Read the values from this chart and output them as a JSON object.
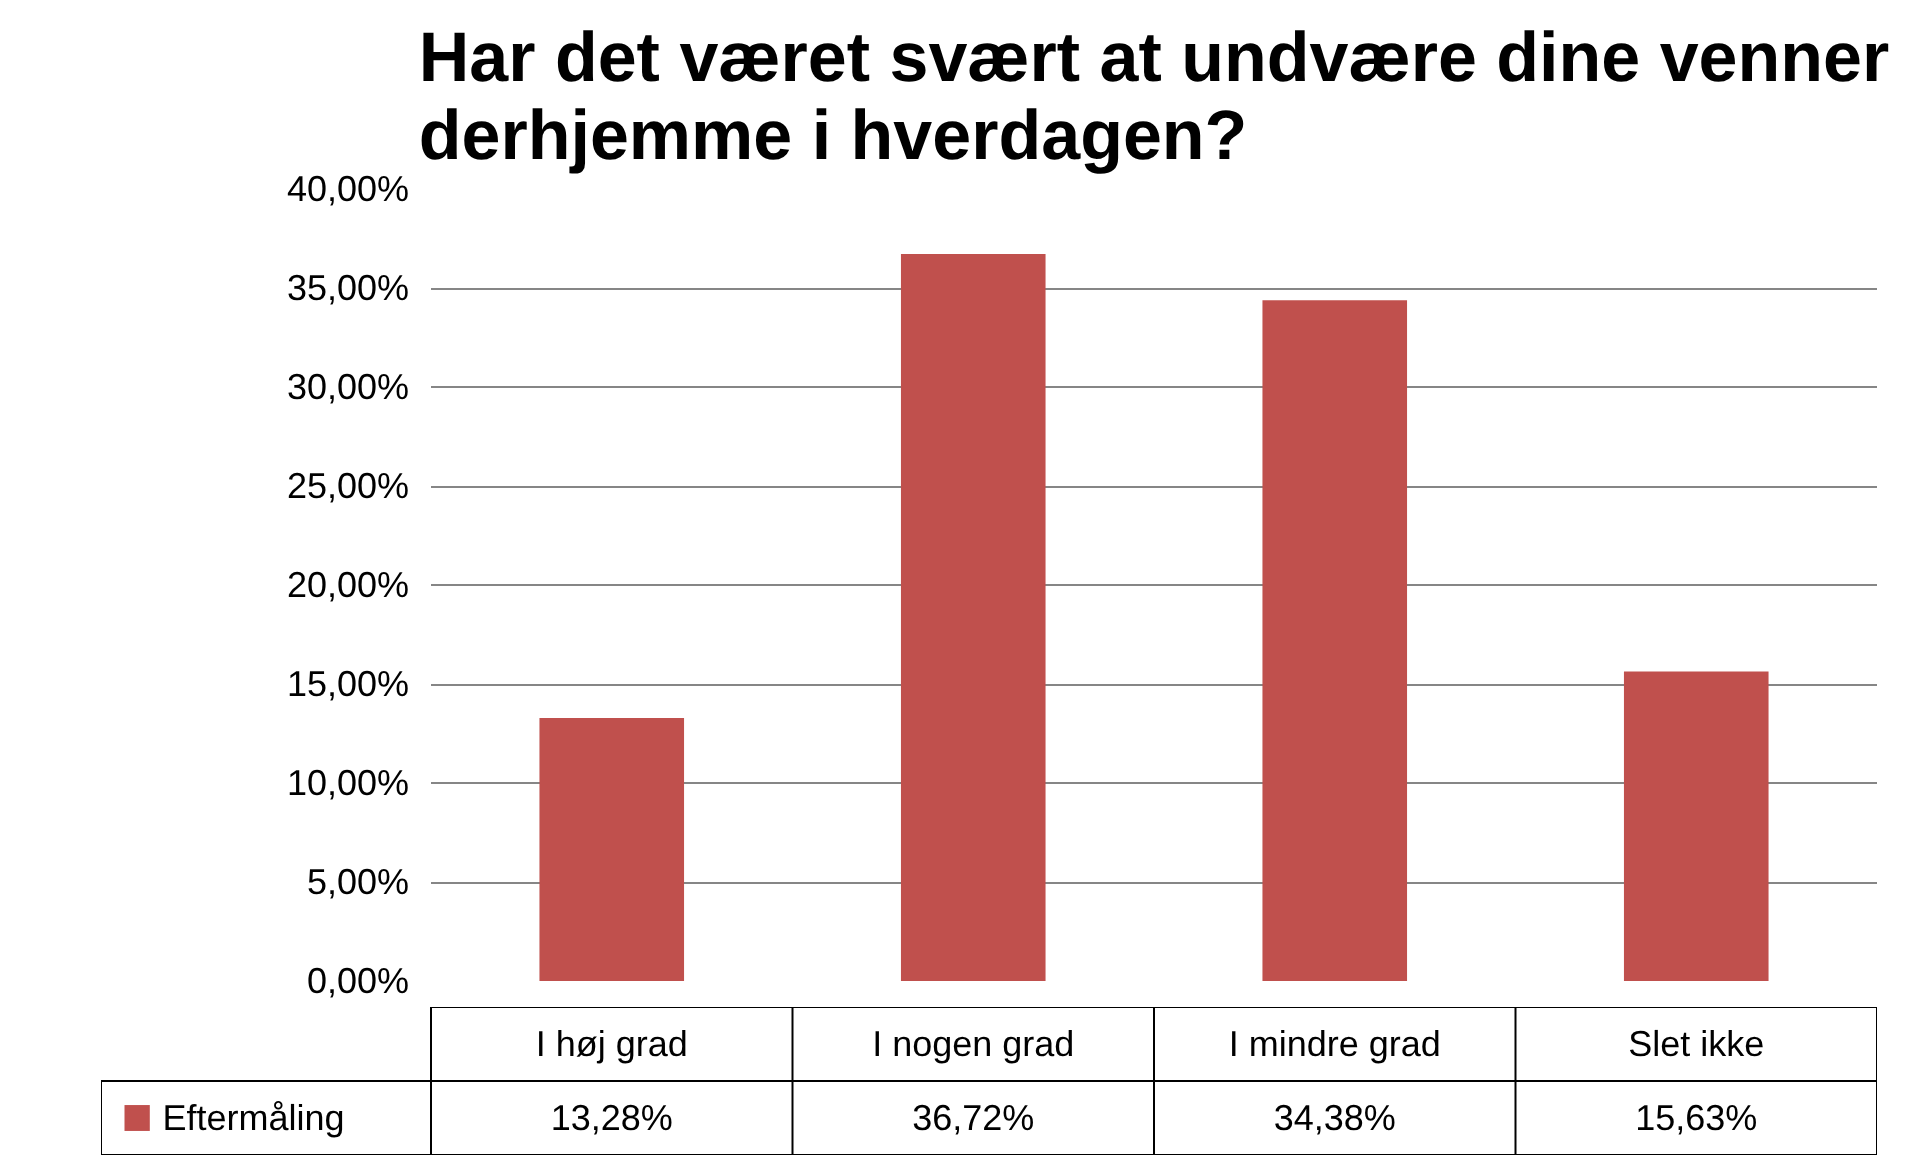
{
  "chart_data": {
    "type": "bar",
    "title": "Har det været svært at undvære dine venner derhjemme i hverdagen?",
    "categories": [
      "I høj grad",
      "I nogen grad",
      "I mindre grad",
      "Slet ikke"
    ],
    "series": [
      {
        "name": "Eftermåling",
        "color": "#c0504d",
        "values": [
          13.28,
          36.72,
          34.38,
          15.63
        ],
        "value_labels": [
          "13,28%",
          "36,72%",
          "34,38%",
          "15,63%"
        ]
      }
    ],
    "ylim": [
      0,
      40
    ],
    "yticks": [
      {
        "value": 0,
        "label": "0,00%"
      },
      {
        "value": 5,
        "label": "5,00%"
      },
      {
        "value": 10,
        "label": "10,00%"
      },
      {
        "value": 15,
        "label": "15,00%"
      },
      {
        "value": 20,
        "label": "20,00%"
      },
      {
        "value": 25,
        "label": "25,00%"
      },
      {
        "value": 30,
        "label": "30,00%"
      },
      {
        "value": 35,
        "label": "35,00%"
      },
      {
        "value": 40,
        "label": "40,00%"
      }
    ],
    "grid": "y",
    "legend": "bottom"
  }
}
